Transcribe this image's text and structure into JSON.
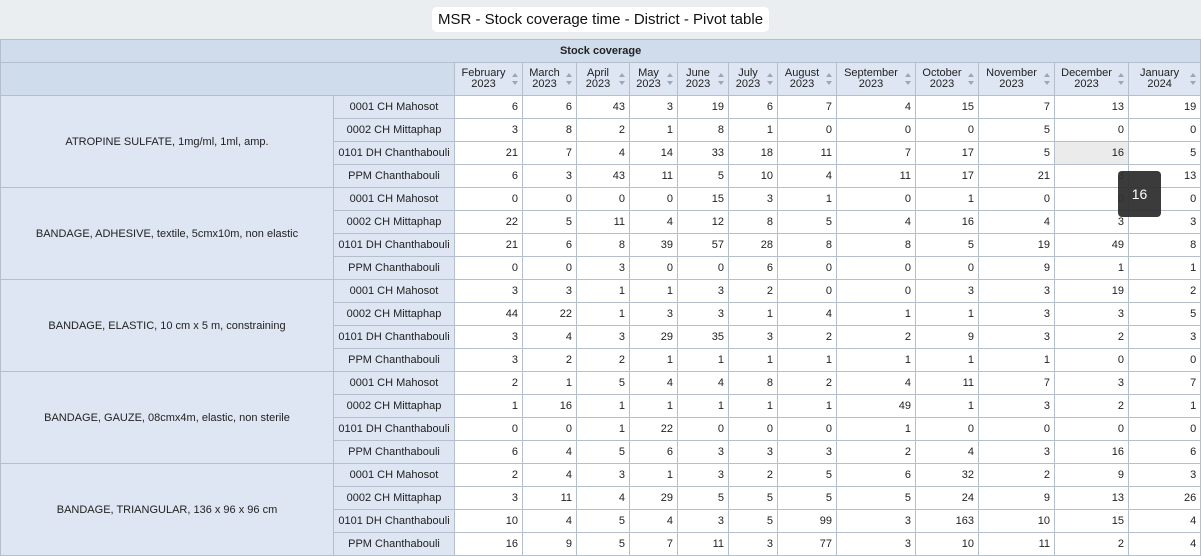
{
  "title": "MSR - Stock coverage time - District - Pivot table",
  "group_header": "Stock coverage",
  "months": [
    {
      "month": "February",
      "year": "2023"
    },
    {
      "month": "March",
      "year": "2023"
    },
    {
      "month": "April",
      "year": "2023"
    },
    {
      "month": "May",
      "year": "2023"
    },
    {
      "month": "June",
      "year": "2023"
    },
    {
      "month": "July",
      "year": "2023"
    },
    {
      "month": "August",
      "year": "2023"
    },
    {
      "month": "September",
      "year": "2023"
    },
    {
      "month": "October",
      "year": "2023"
    },
    {
      "month": "November",
      "year": "2023"
    },
    {
      "month": "December",
      "year": "2023"
    },
    {
      "month": "January",
      "year": "2024"
    }
  ],
  "products": [
    {
      "name": "ATROPINE SULFATE, 1mg/ml, 1ml, amp.",
      "rows": [
        {
          "site": "0001 CH Mahosot",
          "values": [
            "6",
            "6",
            "43",
            "3",
            "19",
            "6",
            "7",
            "4",
            "15",
            "7",
            "13",
            "19"
          ]
        },
        {
          "site": "0002 CH Mittaphap",
          "values": [
            "3",
            "8",
            "2",
            "1",
            "8",
            "1",
            "0",
            "0",
            "0",
            "5",
            "0",
            "0"
          ]
        },
        {
          "site": "0101 DH Chanthabouli",
          "values": [
            "21",
            "7",
            "4",
            "14",
            "33",
            "18",
            "11",
            "7",
            "17",
            "5",
            "16",
            "5"
          ]
        },
        {
          "site": "PPM Chanthabouli",
          "values": [
            "6",
            "3",
            "43",
            "11",
            "5",
            "10",
            "4",
            "11",
            "17",
            "21",
            "3",
            "13"
          ]
        }
      ]
    },
    {
      "name": "BANDAGE, ADHESIVE, textile, 5cmx10m, non elastic",
      "rows": [
        {
          "site": "0001 CH Mahosot",
          "values": [
            "0",
            "0",
            "0",
            "0",
            "15",
            "3",
            "1",
            "0",
            "1",
            "0",
            "0",
            "0"
          ]
        },
        {
          "site": "0002 CH Mittaphap",
          "values": [
            "22",
            "5",
            "11",
            "4",
            "12",
            "8",
            "5",
            "4",
            "16",
            "4",
            "3",
            "3"
          ]
        },
        {
          "site": "0101 DH Chanthabouli",
          "values": [
            "21",
            "6",
            "8",
            "39",
            "57",
            "28",
            "8",
            "8",
            "5",
            "19",
            "49",
            "8"
          ]
        },
        {
          "site": "PPM Chanthabouli",
          "values": [
            "0",
            "0",
            "3",
            "0",
            "0",
            "6",
            "0",
            "0",
            "0",
            "9",
            "1",
            "1"
          ]
        }
      ]
    },
    {
      "name": "BANDAGE, ELASTIC, 10 cm x 5 m, constraining",
      "rows": [
        {
          "site": "0001 CH Mahosot",
          "values": [
            "3",
            "3",
            "1",
            "1",
            "3",
            "2",
            "0",
            "0",
            "3",
            "3",
            "19",
            "2"
          ]
        },
        {
          "site": "0002 CH Mittaphap",
          "values": [
            "44",
            "22",
            "1",
            "3",
            "3",
            "1",
            "4",
            "1",
            "1",
            "3",
            "3",
            "5"
          ]
        },
        {
          "site": "0101 DH Chanthabouli",
          "values": [
            "3",
            "4",
            "3",
            "29",
            "35",
            "3",
            "2",
            "2",
            "9",
            "3",
            "2",
            "3"
          ]
        },
        {
          "site": "PPM Chanthabouli",
          "values": [
            "3",
            "2",
            "2",
            "1",
            "1",
            "1",
            "1",
            "1",
            "1",
            "1",
            "0",
            "0"
          ]
        }
      ]
    },
    {
      "name": "BANDAGE, GAUZE, 08cmx4m, elastic, non sterile",
      "rows": [
        {
          "site": "0001 CH Mahosot",
          "values": [
            "2",
            "1",
            "5",
            "4",
            "4",
            "8",
            "2",
            "4",
            "11",
            "7",
            "3",
            "7"
          ]
        },
        {
          "site": "0002 CH Mittaphap",
          "values": [
            "1",
            "16",
            "1",
            "1",
            "1",
            "1",
            "1",
            "49",
            "1",
            "3",
            "2",
            "1"
          ]
        },
        {
          "site": "0101 DH Chanthabouli",
          "values": [
            "0",
            "0",
            "1",
            "22",
            "0",
            "0",
            "0",
            "1",
            "0",
            "0",
            "0",
            "0"
          ]
        },
        {
          "site": "PPM Chanthabouli",
          "values": [
            "6",
            "4",
            "5",
            "6",
            "3",
            "3",
            "3",
            "2",
            "4",
            "3",
            "16",
            "6"
          ]
        }
      ]
    },
    {
      "name": "BANDAGE, TRIANGULAR, 136 x 96 x 96 cm",
      "rows": [
        {
          "site": "0001 CH Mahosot",
          "values": [
            "2",
            "4",
            "3",
            "1",
            "3",
            "2",
            "5",
            "6",
            "32",
            "2",
            "9",
            "3"
          ]
        },
        {
          "site": "0002 CH Mittaphap",
          "values": [
            "3",
            "11",
            "4",
            "29",
            "5",
            "5",
            "5",
            "5",
            "24",
            "9",
            "13",
            "26"
          ]
        },
        {
          "site": "0101 DH Chanthabouli",
          "values": [
            "10",
            "4",
            "5",
            "4",
            "3",
            "5",
            "99",
            "3",
            "163",
            "10",
            "15",
            "4"
          ]
        },
        {
          "site": "PPM Chanthabouli",
          "values": [
            "16",
            "9",
            "5",
            "7",
            "11",
            "3",
            "77",
            "3",
            "10",
            "11",
            "2",
            "4"
          ]
        }
      ]
    }
  ],
  "tooltip": {
    "value": "16"
  },
  "highlight": {
    "product": 0,
    "row": 2,
    "col": 10
  }
}
